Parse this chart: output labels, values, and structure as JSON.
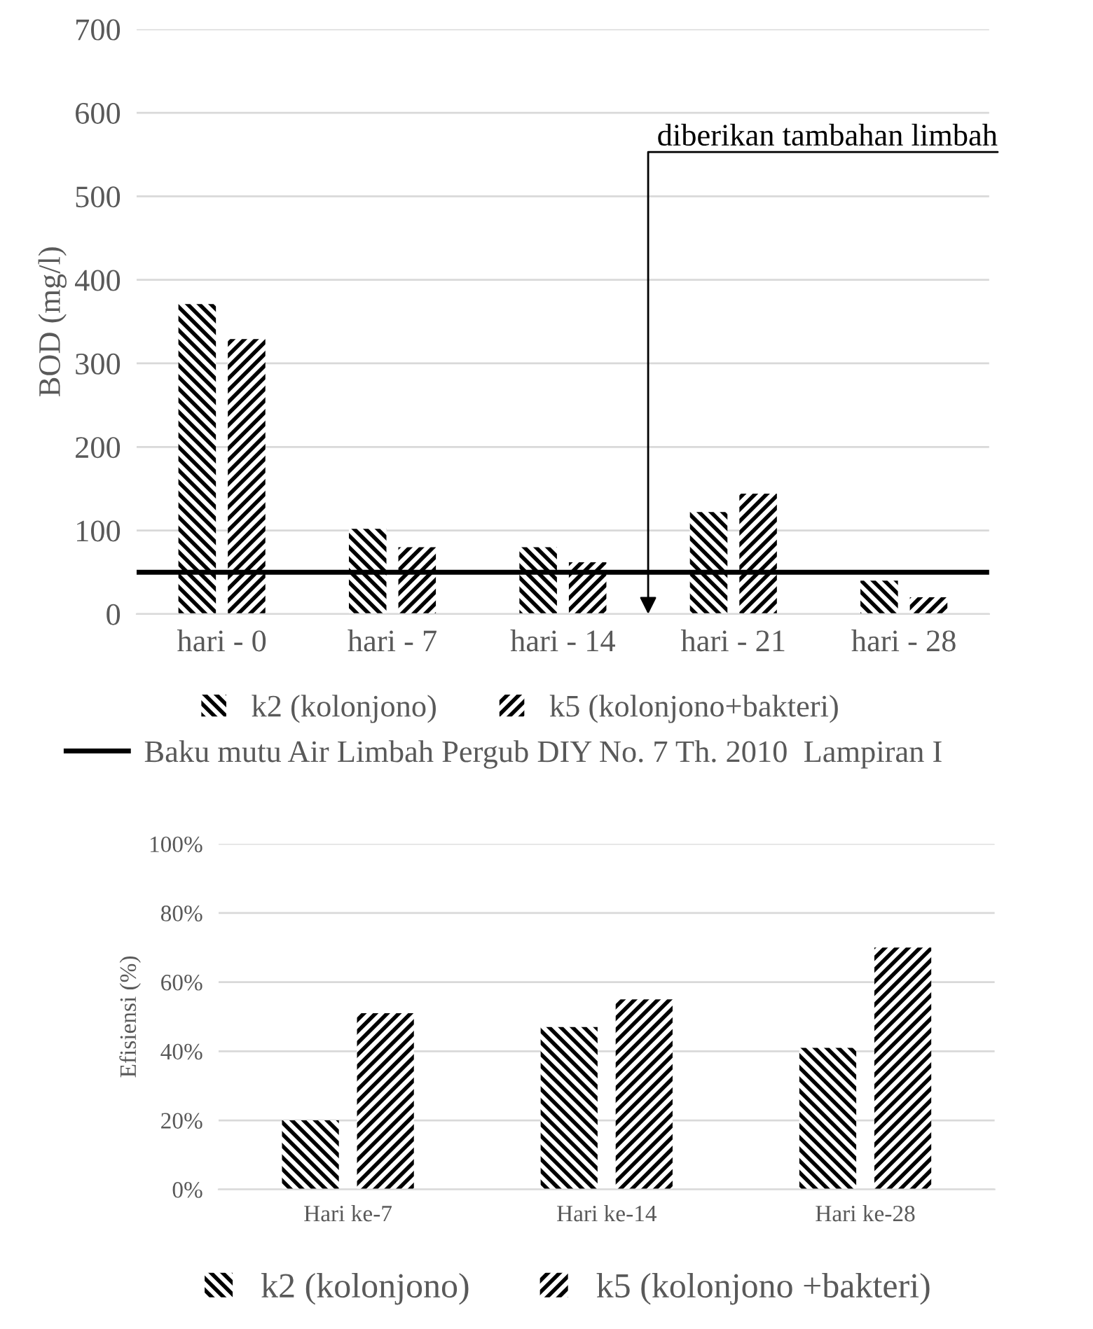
{
  "chart_data": [
    {
      "type": "bar",
      "ylabel": "BOD (mg/l)",
      "categories": [
        "hari - 0",
        "hari - 7",
        "hari - 14",
        "hari - 21",
        "hari - 28"
      ],
      "series": [
        {
          "name": "k2 (kolonjono)",
          "color": "#000000",
          "values": [
            371,
            102,
            80,
            122,
            40
          ]
        },
        {
          "name": "k5 (kolonjono+bakteri)",
          "color": "#000000",
          "values": [
            329,
            80,
            62,
            144,
            20
          ]
        }
      ],
      "ylim": [
        0,
        700
      ],
      "yticks": [
        0,
        100,
        200,
        300,
        400,
        500,
        600,
        700
      ],
      "grid": "y",
      "legend": "bottom",
      "ref_lines": [
        {
          "axis": "y",
          "value": 50,
          "label": "Baku mutu Air Limbah Pergub DIY No. 7 Th. 2010  Lampiran I",
          "color": "#000000",
          "line_style": "solid"
        }
      ],
      "annotations": [
        "diberikan tambahan limbah"
      ]
    },
    {
      "type": "bar",
      "ylabel": "Efisiensi (%)",
      "categories": [
        "Hari ke-7",
        "Hari ke-14",
        "Hari ke-28"
      ],
      "series": [
        {
          "name": "k2 (kolonjono)",
          "color": "#000000",
          "values": [
            20,
            47,
            41
          ]
        },
        {
          "name": "k5 (kolonjono +bakteri)",
          "color": "#000000",
          "values": [
            51,
            55,
            70
          ]
        }
      ],
      "ylim": [
        0,
        100
      ],
      "yticks": [
        {
          "value": 0,
          "label": "0%"
        },
        {
          "value": 20,
          "label": "20%"
        },
        {
          "value": 40,
          "label": "40%"
        },
        {
          "value": 60,
          "label": "60%"
        },
        {
          "value": 80,
          "label": "80%"
        },
        {
          "value": 100,
          "label": "100%"
        }
      ],
      "grid": "y",
      "legend": "bottom"
    }
  ]
}
